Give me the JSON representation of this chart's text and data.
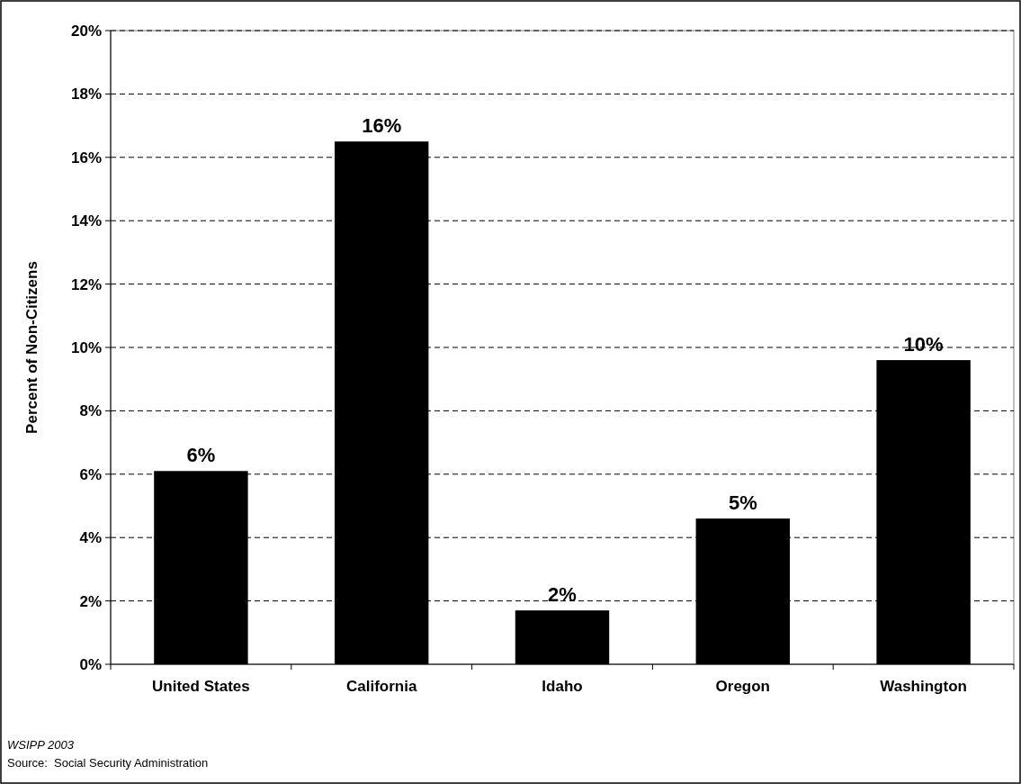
{
  "chart_data": {
    "type": "bar",
    "ylabel": "Percent of Non-Citizens",
    "categories": [
      "United States",
      "California",
      "Idaho",
      "Oregon",
      "Washington"
    ],
    "values": [
      6.1,
      16.5,
      1.7,
      4.6,
      9.6
    ],
    "value_labels": [
      "6%",
      "16%",
      "2%",
      "5%",
      "10%"
    ],
    "color": "#000000",
    "ylim": [
      0,
      20
    ],
    "yticks": [
      {
        "value": 0,
        "label": "0%"
      },
      {
        "value": 2,
        "label": "2%"
      },
      {
        "value": 4,
        "label": "4%"
      },
      {
        "value": 6,
        "label": "6%"
      },
      {
        "value": 8,
        "label": "8%"
      },
      {
        "value": 10,
        "label": "10%"
      },
      {
        "value": 12,
        "label": "12%"
      },
      {
        "value": 14,
        "label": "14%"
      },
      {
        "value": 16,
        "label": "16%"
      },
      {
        "value": 18,
        "label": "18%"
      },
      {
        "value": 20,
        "label": "20%"
      }
    ],
    "grid": "y",
    "annotations": [
      "WSIPP 2003",
      "Source:  Social Security Administration"
    ]
  }
}
